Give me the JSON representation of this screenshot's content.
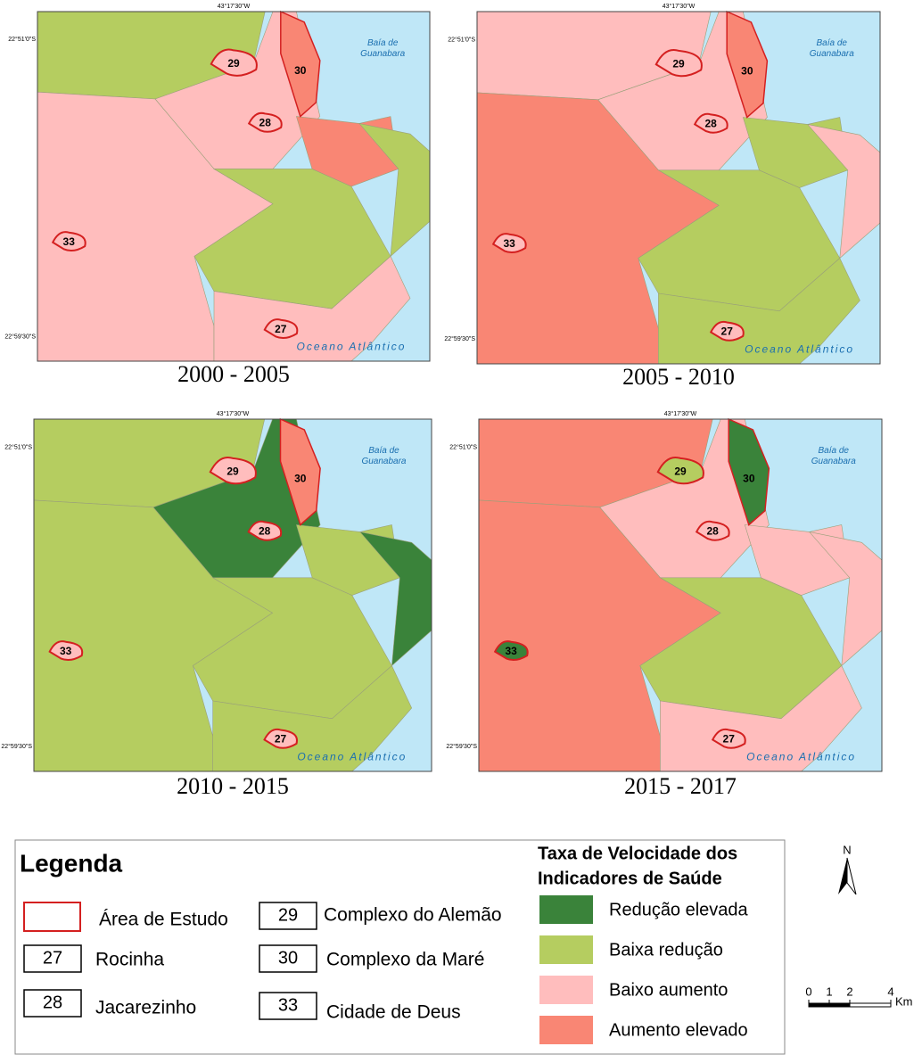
{
  "map_labels": {
    "longitude": "43°17'30\"W",
    "lat_north": "22°51'0\"S",
    "lat_south": "22°59'30\"S",
    "bay": [
      "Baía de",
      "Guanabara"
    ],
    "ocean": "Oceano Atlântico"
  },
  "panels": [
    {
      "caption": "2000 - 2005",
      "areas": [
        "27",
        "28",
        "29",
        "30",
        "33"
      ]
    },
    {
      "caption": "2005 - 2010",
      "areas": [
        "27",
        "28",
        "29",
        "30",
        "33"
      ]
    },
    {
      "caption": "2010 - 2015",
      "areas": [
        "27",
        "28",
        "29",
        "30",
        "33"
      ]
    },
    {
      "caption": "2015 - 2017",
      "areas": [
        "27",
        "28",
        "29",
        "30",
        "33"
      ]
    }
  ],
  "legend": {
    "title": "Legenda",
    "study_area": "Área de Estudo",
    "areas": [
      {
        "code": "27",
        "name": "Rocinha"
      },
      {
        "code": "28",
        "name": "Jacarezinho"
      },
      {
        "code": "29",
        "name": "Complexo do Alemão"
      },
      {
        "code": "30",
        "name": "Complexo da Maré"
      },
      {
        "code": "33",
        "name": "Cidade de Deus"
      }
    ],
    "classes_title": [
      "Taxa de Velocidade dos",
      "Indicadores de Saúde"
    ],
    "classes": [
      {
        "label": "Redução elevada",
        "color": "#3a833a"
      },
      {
        "label": "Baixa redução",
        "color": "#b5cd60"
      },
      {
        "label": "Baixo aumento",
        "color": "#ffbdbd"
      },
      {
        "label": "Aumento elevado",
        "color": "#f98674"
      }
    ]
  },
  "north": "N",
  "scale": {
    "ticks": [
      0,
      1,
      2,
      4
    ],
    "unit": "Km"
  }
}
